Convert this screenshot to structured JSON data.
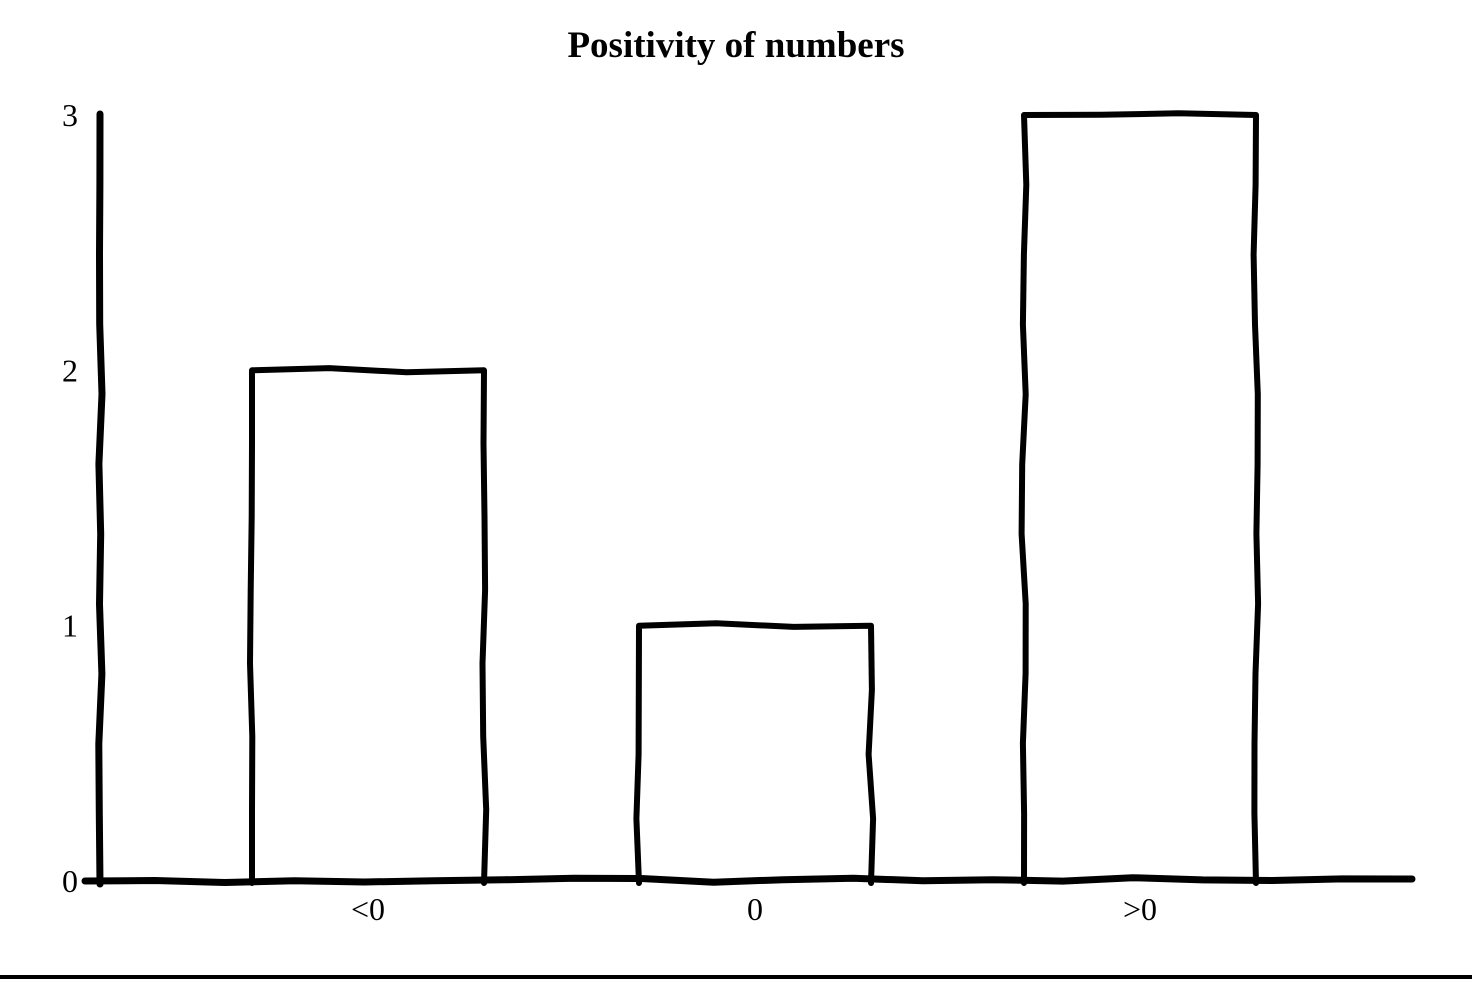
{
  "page": {
    "background": "#ffffff",
    "bottom_rule_color": "#000000"
  },
  "chart_data": {
    "type": "bar",
    "title": "Positivity of numbers",
    "categories": [
      "<0",
      "0",
      ">0"
    ],
    "values": [
      2,
      1,
      3
    ],
    "xlabel": "",
    "ylabel": "",
    "ylim": [
      0,
      3
    ],
    "yticks": [
      0,
      1,
      2,
      3
    ],
    "grid": false,
    "legend": "none",
    "style": "hand-drawn-sketch",
    "bar_fill": "#ffffff",
    "line_color": "#000000",
    "text_color": "#000000"
  }
}
